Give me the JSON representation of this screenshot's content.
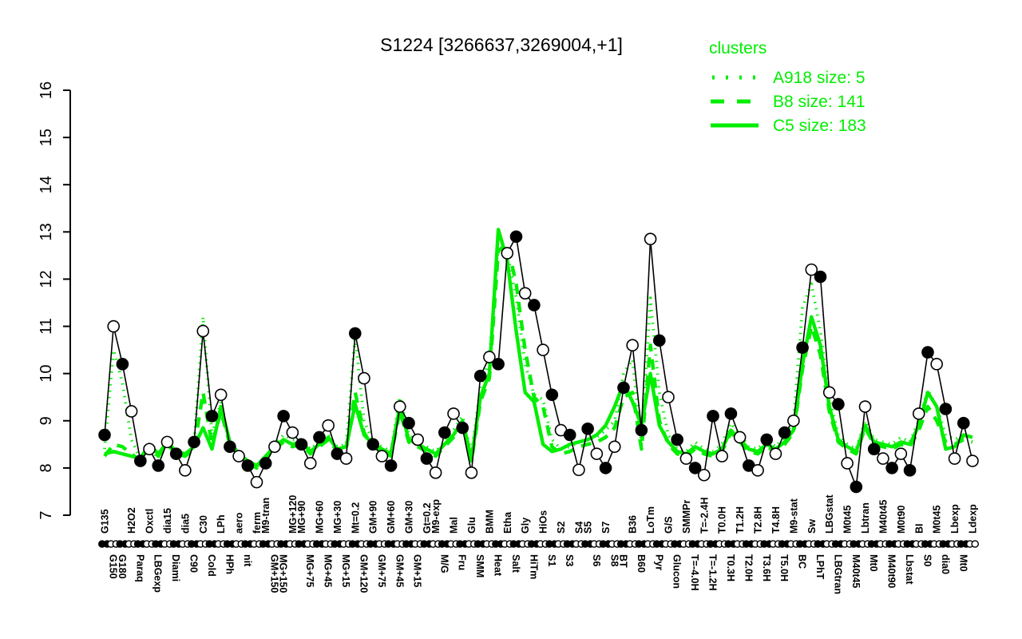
{
  "title": "S1224 [3266637,3269004,+1]",
  "colors": {
    "cluster_green": "#00ee00",
    "sample_black": "#000000",
    "background": "#ffffff"
  },
  "legend": {
    "title": "clusters",
    "entries": [
      {
        "label": "A918 size: 5",
        "style": "dotted"
      },
      {
        "label": "B8 size: 141",
        "style": "dashed"
      },
      {
        "label": "C5 size: 183",
        "style": "solid"
      }
    ]
  },
  "y_axis": {
    "min": 7,
    "max": 16,
    "ticks": [
      7,
      8,
      9,
      10,
      11,
      12,
      13,
      14,
      15,
      16
    ]
  },
  "chart_data": {
    "type": "line",
    "title": "S1224 [3266637,3269004,+1]",
    "xlabel": "",
    "ylabel": "",
    "ylim": [
      7,
      16
    ],
    "grid": false,
    "legend_position": "top-right",
    "categories": [
      "G135",
      "G150",
      "G180",
      "H2O2",
      "Paraq",
      "Oxctl",
      "LBGexp",
      "dia15",
      "Diami",
      "dia5",
      "C90",
      "C30",
      "Cold",
      "LPh",
      "HPh",
      "aero",
      "nit",
      "ferm",
      "M9-tran",
      "GM+150",
      "MG+150",
      "MG+120",
      "MG+90",
      "MG+75",
      "MG+60",
      "MG+45",
      "MG+30",
      "MG+15",
      "Mt=0.2",
      "GM+120",
      "GM+90",
      "GM+75",
      "GM+60",
      "GM+45",
      "GM+30",
      "GM+15",
      "Gt=0.2",
      "M9-exp",
      "M/G",
      "Mal",
      "Fru",
      "Glu",
      "SMM",
      "BMM",
      "Heat",
      "Etha",
      "Salt",
      "Gly",
      "HiTm",
      "HiOs",
      "S1",
      "S2",
      "S3",
      "S4",
      "S5",
      "S6",
      "S7",
      "S8",
      "BT",
      "B36",
      "B60",
      "LoTm",
      "Pyr",
      "G/S",
      "Glucon",
      "SMMPr",
      "T=-4.0H",
      "T=-2.4H",
      "T=-1.2H",
      "T0.0H",
      "T0.3H",
      "T1.2H",
      "T2.0H",
      "T2.8H",
      "T3.6H",
      "T4.8H",
      "T5.0H",
      "M9-stat",
      "BC",
      "Sw",
      "LPhT",
      "LBGstat",
      "LBGtran",
      "M0t45",
      "M40t45",
      "Lbtran",
      "Mt0",
      "M40t45",
      "M40t90",
      "M0t90",
      "Lbstat",
      "BI",
      "S0",
      "M0t45",
      "dia0",
      "Lbexp",
      "Mt0",
      "Ldexp"
    ],
    "label_side": [
      "t",
      "b",
      "b",
      "t",
      "b",
      "t",
      "b",
      "t",
      "b",
      "t",
      "b",
      "t",
      "b",
      "t",
      "b",
      "t",
      "b",
      "t",
      "t",
      "b",
      "b",
      "t",
      "t",
      "b",
      "t",
      "b",
      "t",
      "b",
      "t",
      "b",
      "t",
      "b",
      "t",
      "b",
      "t",
      "b",
      "t",
      "t",
      "b",
      "t",
      "b",
      "t",
      "b",
      "t",
      "b",
      "t",
      "b",
      "t",
      "b",
      "t",
      "b",
      "t",
      "b",
      "t",
      "t",
      "b",
      "t",
      "b",
      "b",
      "t",
      "b",
      "t",
      "b",
      "t",
      "b",
      "t",
      "b",
      "t",
      "b",
      "t",
      "b",
      "t",
      "b",
      "t",
      "b",
      "t",
      "b",
      "t",
      "b",
      "t",
      "b",
      "t",
      "b",
      "t",
      "b",
      "t",
      "b",
      "t",
      "b",
      "t",
      "b",
      "t",
      "b",
      "t",
      "b",
      "t",
      "b",
      "t"
    ],
    "series": [
      {
        "name": "S1224 samples",
        "color": "#000000",
        "style": "solid-markers",
        "values": [
          8.7,
          11.0,
          10.2,
          9.2,
          8.15,
          8.4,
          8.05,
          8.55,
          8.3,
          7.95,
          8.55,
          10.9,
          9.1,
          9.55,
          8.45,
          8.25,
          8.05,
          7.7,
          8.1,
          8.45,
          9.1,
          8.75,
          8.5,
          8.1,
          8.65,
          8.9,
          8.3,
          8.2,
          10.85,
          9.9,
          8.5,
          8.25,
          8.05,
          9.3,
          8.95,
          8.6,
          8.2,
          7.9,
          8.75,
          9.15,
          8.85,
          7.9,
          9.95,
          10.35,
          10.2,
          12.55,
          12.9,
          11.7,
          11.45,
          10.5,
          9.55,
          8.8,
          8.7,
          7.96,
          8.83,
          8.3,
          8.0,
          8.45,
          9.7,
          10.6,
          8.8,
          12.85,
          10.7,
          9.5,
          8.6,
          8.2,
          8.0,
          7.85,
          9.1,
          8.25,
          9.15,
          8.65,
          8.05,
          7.95,
          8.6,
          8.3,
          8.75,
          9.0,
          10.55,
          12.2,
          12.05,
          9.6,
          9.35,
          8.1,
          7.6,
          9.3,
          8.4,
          8.2,
          8.0,
          8.3,
          7.95,
          9.15,
          10.45,
          10.2,
          9.25,
          8.2,
          8.95,
          8.15
        ]
      },
      {
        "name": "A918 size: 5",
        "color": "#00ee00",
        "style": "dotted",
        "values": [
          8.4,
          10.5,
          9.8,
          8.6,
          8.2,
          8.45,
          8.2,
          8.6,
          8.35,
          8.25,
          8.5,
          11.2,
          8.7,
          9.4,
          8.5,
          8.3,
          8.1,
          8.0,
          8.25,
          8.5,
          8.7,
          8.6,
          8.6,
          8.4,
          8.55,
          8.7,
          8.45,
          8.5,
          10.8,
          9.0,
          8.55,
          8.45,
          8.35,
          9.5,
          8.7,
          8.55,
          8.45,
          8.35,
          8.55,
          8.8,
          9.1,
          8.3,
          9.7,
          10.3,
          12.7,
          12.55,
          11.6,
          10.2,
          9.55,
          9.45,
          8.6,
          8.4,
          8.45,
          8.55,
          8.6,
          8.65,
          8.8,
          9.0,
          10.0,
          10.3,
          8.5,
          11.6,
          9.6,
          8.7,
          8.4,
          8.35,
          8.55,
          8.4,
          8.35,
          8.5,
          8.95,
          8.7,
          8.45,
          8.4,
          8.6,
          8.45,
          8.65,
          9.0,
          11.4,
          11.9,
          10.9,
          9.5,
          8.7,
          8.5,
          8.4,
          9.0,
          8.6,
          8.55,
          8.5,
          8.65,
          8.55,
          9.0,
          9.65,
          9.3,
          8.7,
          8.6,
          8.7,
          8.65
        ]
      },
      {
        "name": "B8 size: 141",
        "color": "#00ee00",
        "style": "dashed",
        "values": [
          8.25,
          8.5,
          8.45,
          8.3,
          8.15,
          8.45,
          8.25,
          8.5,
          8.3,
          8.25,
          8.4,
          9.6,
          8.5,
          9.2,
          8.5,
          8.25,
          8.1,
          8.0,
          8.2,
          8.4,
          8.55,
          8.45,
          8.5,
          8.3,
          8.45,
          8.6,
          8.35,
          8.4,
          9.6,
          8.75,
          8.45,
          8.35,
          8.25,
          9.2,
          8.55,
          8.45,
          8.35,
          8.25,
          8.45,
          8.65,
          8.95,
          8.15,
          9.4,
          9.9,
          12.6,
          12.75,
          11.9,
          10.5,
          9.5,
          9.3,
          8.45,
          8.3,
          8.35,
          8.45,
          8.5,
          8.55,
          8.65,
          8.85,
          9.5,
          9.6,
          8.4,
          10.6,
          9.0,
          8.5,
          8.3,
          8.25,
          8.4,
          8.3,
          8.25,
          8.35,
          8.75,
          8.55,
          8.35,
          8.3,
          8.45,
          8.35,
          8.5,
          8.75,
          10.1,
          11.0,
          10.4,
          9.2,
          8.55,
          8.4,
          8.3,
          8.85,
          8.5,
          8.45,
          8.4,
          8.5,
          8.45,
          8.8,
          9.3,
          9.0,
          8.55,
          8.5,
          8.6,
          8.55
        ]
      },
      {
        "name": "C5 size: 183",
        "color": "#00ee00",
        "style": "solid",
        "values": [
          8.3,
          8.35,
          8.3,
          8.25,
          8.2,
          8.5,
          8.3,
          8.55,
          8.35,
          8.3,
          8.45,
          8.85,
          8.4,
          9.3,
          8.55,
          8.3,
          8.15,
          8.05,
          8.25,
          8.45,
          8.6,
          8.5,
          8.55,
          8.35,
          8.5,
          8.65,
          8.4,
          8.45,
          9.35,
          8.7,
          8.5,
          8.4,
          8.3,
          9.3,
          8.6,
          8.5,
          8.4,
          8.3,
          8.5,
          8.7,
          9.0,
          8.2,
          9.5,
          10.0,
          13.05,
          12.4,
          10.9,
          9.6,
          9.4,
          8.5,
          8.35,
          8.4,
          8.5,
          8.55,
          8.6,
          8.7,
          8.9,
          9.3,
          9.8,
          9.4,
          8.9,
          10.0,
          8.9,
          8.55,
          8.35,
          8.3,
          8.45,
          8.35,
          8.3,
          8.4,
          8.8,
          8.6,
          8.4,
          8.35,
          8.5,
          8.4,
          8.55,
          8.8,
          10.2,
          11.2,
          10.6,
          9.3,
          8.6,
          8.45,
          8.35,
          8.9,
          8.55,
          8.5,
          8.45,
          8.55,
          8.5,
          8.9,
          9.6,
          9.3,
          8.4,
          8.45,
          8.7,
          8.65
        ]
      }
    ]
  }
}
